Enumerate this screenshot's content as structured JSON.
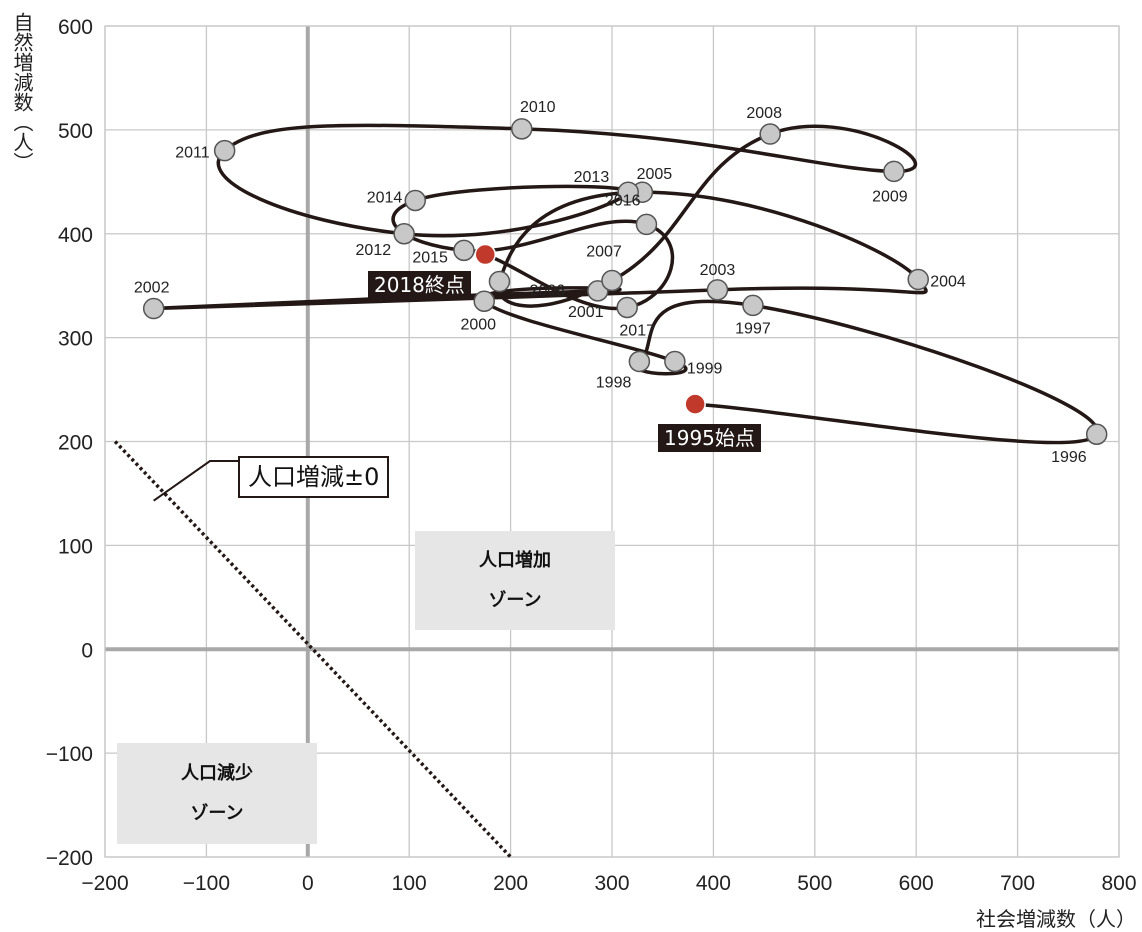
{
  "chart_data": {
    "type": "scatter",
    "xlabel": "社会増減数（人）",
    "ylabel": "自然増減数（人）",
    "xlim": [
      -200,
      800
    ],
    "ylim": [
      -200,
      600
    ],
    "x_ticks": [
      "−200",
      "−100",
      "0",
      "100",
      "200",
      "300",
      "400",
      "500",
      "600",
      "700",
      "800"
    ],
    "y_ticks": [
      "600",
      "500",
      "400",
      "300",
      "200",
      "100",
      "0",
      "−100",
      "−200"
    ],
    "grid": true,
    "points": [
      {
        "year": "1995",
        "x": 382,
        "y": 236
      },
      {
        "year": "1996",
        "x": 778,
        "y": 207
      },
      {
        "year": "1997",
        "x": 439,
        "y": 331
      },
      {
        "year": "1998",
        "x": 327,
        "y": 277
      },
      {
        "year": "1999",
        "x": 362,
        "y": 277
      },
      {
        "year": "2000",
        "x": 174,
        "y": 335
      },
      {
        "year": "2001",
        "x": 286,
        "y": 345
      },
      {
        "year": "2002",
        "x": -152,
        "y": 328
      },
      {
        "year": "2003",
        "x": 404,
        "y": 346
      },
      {
        "year": "2004",
        "x": 602,
        "y": 356
      },
      {
        "year": "2005",
        "x": 330,
        "y": 440
      },
      {
        "year": "2006",
        "x": 189,
        "y": 354
      },
      {
        "year": "2007",
        "x": 300,
        "y": 355
      },
      {
        "year": "2008",
        "x": 456,
        "y": 496
      },
      {
        "year": "2009",
        "x": 578,
        "y": 460
      },
      {
        "year": "2010",
        "x": 211,
        "y": 501
      },
      {
        "year": "2011",
        "x": -82,
        "y": 480
      },
      {
        "year": "2012",
        "x": 95,
        "y": 400
      },
      {
        "year": "2013",
        "x": 316,
        "y": 440
      },
      {
        "year": "2014",
        "x": 106,
        "y": 432
      },
      {
        "year": "2015",
        "x": 154,
        "y": 384
      },
      {
        "year": "2016",
        "x": 334,
        "y": 409
      },
      {
        "year": "2017",
        "x": 315,
        "y": 329
      },
      {
        "year": "2018",
        "x": 175,
        "y": 380
      }
    ],
    "start_label": "1995始点",
    "end_label": "2018終点",
    "reference_line": {
      "label": "人口増減±0"
    },
    "zones": [
      {
        "name": "人口増加",
        "sub": "ゾーン"
      },
      {
        "name": "人口減少",
        "sub": "ゾーン"
      }
    ],
    "colors": {
      "point": "#c8c8c8",
      "endpoint": "#c0392b",
      "line": "#231815",
      "grid": "#c8c8c8",
      "zone_fill": "#e6e6e6"
    }
  }
}
